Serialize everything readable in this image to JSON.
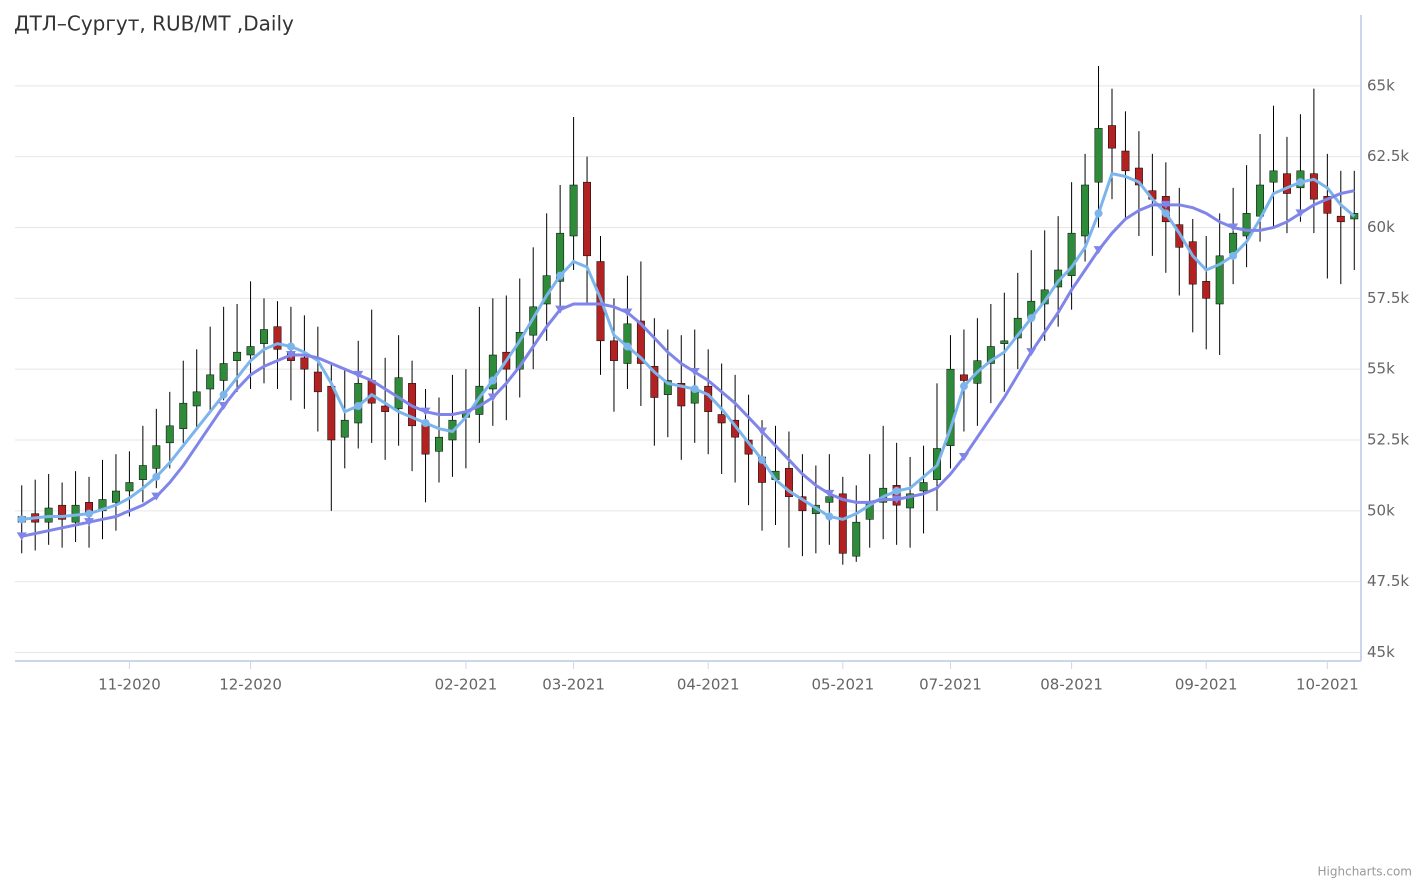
{
  "chart_data": {
    "type": "candlestick",
    "title": "ДТЛ–Сургут, RUB/MT ,Daily",
    "credits": "Highcharts.com",
    "categories": [
      null,
      null,
      null,
      null,
      null,
      null,
      null,
      null,
      null,
      null,
      null,
      null,
      null,
      null,
      null,
      null,
      null,
      null,
      null,
      null,
      null,
      null,
      null,
      null,
      null,
      null,
      null,
      null,
      null,
      null,
      null,
      null,
      null,
      null,
      null,
      null,
      null,
      null,
      null,
      null,
      null,
      null,
      null,
      null,
      null,
      null,
      null,
      null,
      null,
      null,
      null,
      null,
      null,
      null,
      null,
      null,
      null,
      null,
      null,
      null,
      null,
      null,
      null,
      null,
      null,
      null,
      null,
      null,
      null,
      null,
      null,
      null,
      null,
      null,
      null,
      null,
      null,
      null,
      null,
      null,
      null,
      null,
      null,
      null,
      null,
      null,
      null,
      null,
      null,
      null,
      null,
      null,
      null,
      null,
      null,
      null,
      null,
      null,
      null,
      null
    ],
    "open": [
      49600,
      49900,
      49600,
      50200,
      49600,
      50300,
      50000,
      50300,
      50700,
      51100,
      51500,
      52400,
      52900,
      53700,
      54300,
      54600,
      55300,
      55500,
      55900,
      56500,
      55600,
      55400,
      54900,
      54400,
      52600,
      53100,
      54600,
      53700,
      53600,
      54500,
      53100,
      52100,
      52500,
      53300,
      53400,
      54300,
      55600,
      55000,
      56200,
      57300,
      58100,
      59700,
      61600,
      58800,
      56000,
      55200,
      56700,
      55100,
      54100,
      54500,
      53800,
      54400,
      53400,
      53200,
      52500,
      51900,
      51100,
      51500,
      50500,
      49900,
      50300,
      50600,
      48400,
      49700,
      50300,
      50900,
      50100,
      50700,
      51100,
      52300,
      54800,
      54500,
      55200,
      55900,
      56100,
      56800,
      57300,
      57900,
      58300,
      59700,
      61600,
      63600,
      62700,
      62100,
      61300,
      61100,
      60100,
      59500,
      58100,
      57300,
      59100,
      59700,
      60400,
      61600,
      61900,
      61400,
      61900,
      61100,
      60400,
      60300
    ],
    "high": [
      50900,
      51100,
      51300,
      51000,
      51400,
      51200,
      51800,
      52000,
      52100,
      53000,
      53600,
      54200,
      55300,
      55700,
      56500,
      57200,
      57300,
      58100,
      57500,
      57400,
      57200,
      56900,
      56500,
      55200,
      55000,
      56000,
      57100,
      55400,
      56200,
      55300,
      54300,
      54000,
      54800,
      55000,
      57200,
      57500,
      57600,
      58200,
      59300,
      60500,
      61500,
      63900,
      62500,
      59700,
      57500,
      58300,
      58800,
      56800,
      56400,
      56200,
      56400,
      55700,
      55200,
      54800,
      54100,
      53200,
      53000,
      52800,
      52000,
      51600,
      52000,
      51200,
      50900,
      52000,
      53000,
      52400,
      51900,
      52300,
      54500,
      56200,
      56400,
      56800,
      57300,
      57700,
      58400,
      59200,
      59900,
      60400,
      61600,
      62600,
      65700,
      64900,
      64100,
      63400,
      62600,
      62300,
      61400,
      60300,
      59700,
      60500,
      61400,
      62200,
      63300,
      64300,
      63200,
      64000,
      64900,
      62600,
      62000,
      62000
    ],
    "low": [
      48500,
      48600,
      48800,
      48700,
      48900,
      48700,
      49000,
      49300,
      49800,
      50300,
      50800,
      51500,
      52400,
      52900,
      53500,
      53900,
      54200,
      54300,
      54500,
      54300,
      53900,
      53600,
      52800,
      50000,
      51500,
      52200,
      52400,
      51800,
      52300,
      51400,
      50300,
      51000,
      51200,
      51500,
      52400,
      53000,
      53200,
      54000,
      55000,
      56000,
      57000,
      58500,
      57300,
      54800,
      53500,
      54300,
      53700,
      52300,
      52600,
      51800,
      52400,
      52000,
      51300,
      51000,
      50200,
      49300,
      49500,
      48700,
      48400,
      48500,
      48800,
      48100,
      48200,
      48700,
      49000,
      48800,
      48700,
      49200,
      50000,
      51500,
      52800,
      53000,
      53800,
      54200,
      55000,
      55500,
      56000,
      56500,
      57100,
      58800,
      60000,
      61000,
      60300,
      59700,
      59000,
      58400,
      57600,
      56300,
      55700,
      55500,
      58000,
      58600,
      59500,
      60000,
      59800,
      60200,
      59800,
      58200,
      58000,
      58500
    ],
    "close": [
      49800,
      49600,
      50100,
      49700,
      50200,
      49900,
      50400,
      50700,
      51000,
      51600,
      52300,
      53000,
      53800,
      54200,
      54800,
      55200,
      55600,
      55800,
      56400,
      55700,
      55300,
      55000,
      54200,
      52500,
      53200,
      54500,
      53800,
      53500,
      54700,
      53000,
      52000,
      52600,
      53200,
      53500,
      54400,
      55500,
      55000,
      56300,
      57200,
      58300,
      59800,
      61500,
      59000,
      56000,
      55300,
      56600,
      55200,
      54000,
      54600,
      53700,
      54300,
      53500,
      53100,
      52600,
      52000,
      51000,
      51400,
      50500,
      50000,
      50200,
      50500,
      48500,
      49600,
      50300,
      50800,
      50200,
      50600,
      51000,
      52200,
      55000,
      54600,
      55300,
      55800,
      56000,
      56800,
      57400,
      57800,
      58500,
      59800,
      61500,
      63500,
      62800,
      62000,
      61500,
      61000,
      60200,
      59300,
      58000,
      57500,
      59000,
      59800,
      60500,
      61500,
      62000,
      61200,
      62000,
      61000,
      60500,
      60200,
      60500
    ],
    "up_color": "#2e8b3a",
    "down_color": "#b22222",
    "series": [
      {
        "type": "line",
        "marker": "circle",
        "color": "#7cb5ec",
        "values": [
          49700,
          49750,
          49800,
          49800,
          49850,
          49900,
          50050,
          50200,
          50450,
          50800,
          51200,
          51700,
          52300,
          52900,
          53500,
          54100,
          54700,
          55300,
          55700,
          55900,
          55800,
          55600,
          55300,
          54500,
          53500,
          53700,
          54100,
          53800,
          53500,
          53300,
          53100,
          52900,
          52800,
          53300,
          54000,
          54600,
          55300,
          56000,
          56800,
          57600,
          58300,
          58800,
          58600,
          57500,
          56200,
          55800,
          55400,
          54900,
          54500,
          54400,
          54300,
          54100,
          53600,
          53000,
          52400,
          51800,
          51100,
          50700,
          50400,
          50100,
          49800,
          49700,
          49900,
          50200,
          50500,
          50700,
          50800,
          51200,
          51600,
          52900,
          54400,
          54900,
          55300,
          55600,
          56200,
          56800,
          57400,
          58100,
          58600,
          59300,
          60500,
          61900,
          61800,
          61600,
          61000,
          60500,
          59800,
          59000,
          58500,
          58700,
          59000,
          59500,
          60300,
          61200,
          61400,
          61600,
          61700,
          61400,
          60800,
          60400
        ]
      },
      {
        "type": "line",
        "marker": "triangle-down",
        "color": "#8085e9",
        "values": [
          49100,
          49200,
          49300,
          49400,
          49500,
          49600,
          49700,
          49800,
          50000,
          50200,
          50500,
          51000,
          51600,
          52300,
          53000,
          53700,
          54300,
          54800,
          55100,
          55300,
          55500,
          55500,
          55400,
          55200,
          55000,
          54800,
          54600,
          54300,
          54000,
          53700,
          53500,
          53400,
          53400,
          53500,
          53700,
          54000,
          54500,
          55100,
          55800,
          56500,
          57100,
          57300,
          57300,
          57300,
          57200,
          57000,
          56600,
          56100,
          55600,
          55200,
          54900,
          54600,
          54200,
          53800,
          53300,
          52800,
          52300,
          51800,
          51300,
          50900,
          50600,
          50400,
          50300,
          50300,
          50400,
          50400,
          50500,
          50600,
          50800,
          51300,
          51900,
          52600,
          53300,
          54000,
          54800,
          55600,
          56300,
          57000,
          57800,
          58500,
          59200,
          59800,
          60300,
          60600,
          60800,
          60800,
          60800,
          60700,
          60500,
          60200,
          60000,
          59900,
          59900,
          60000,
          60200,
          60500,
          60800,
          61000,
          61200,
          61300
        ]
      }
    ],
    "ylim": [
      44700,
      67500
    ],
    "yticks": [
      {
        "value": 45000,
        "label": "45k"
      },
      {
        "value": 47500,
        "label": "47.5k"
      },
      {
        "value": 50000,
        "label": "50k"
      },
      {
        "value": 52500,
        "label": "52.5k"
      },
      {
        "value": 55000,
        "label": "55k"
      },
      {
        "value": 57500,
        "label": "57.5k"
      },
      {
        "value": 60000,
        "label": "60k"
      },
      {
        "value": 62500,
        "label": "62.5k"
      },
      {
        "value": 65000,
        "label": "65k"
      }
    ],
    "xticks": [
      {
        "value": 8,
        "label": "11-2020"
      },
      {
        "value": 17,
        "label": "12-2020"
      },
      {
        "value": 33,
        "label": "02-2021"
      },
      {
        "value": 41,
        "label": "03-2021"
      },
      {
        "value": 51,
        "label": "04-2021"
      },
      {
        "value": 61,
        "label": "05-2021"
      },
      {
        "value": 69,
        "label": "07-2021"
      },
      {
        "value": 78,
        "label": "08-2021"
      },
      {
        "value": 88,
        "label": "09-2021"
      },
      {
        "value": 97,
        "label": "10-2021"
      }
    ],
    "grid": true
  }
}
